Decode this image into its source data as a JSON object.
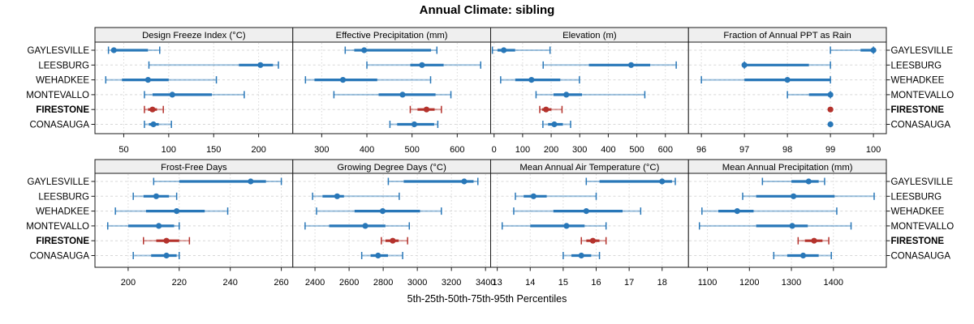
{
  "title": "Annual Climate: sibling",
  "xlabel": "5th-25th-50th-75th-95th Percentiles",
  "sites": [
    "GAYLESVILLE",
    "LEESBURG",
    "WEHADKEE",
    "MONTEVALLO",
    "FIRESTONE",
    "CONASAUGA"
  ],
  "highlight_site": "FIRESTONE",
  "colors": {
    "series": "#2877b8",
    "highlight": "#b4322c",
    "strip_bg": "#efefef",
    "panel_border": "#1a1a1a",
    "grid": "#d8d8d8",
    "text": "#000000"
  },
  "chart_data": {
    "type": "dot-whisker-percentiles",
    "layout": {
      "rows": 2,
      "cols": 4,
      "legend": "none",
      "grid": "dashed"
    },
    "percentile_labels": [
      "5th",
      "25th",
      "50th",
      "75th",
      "95th"
    ],
    "panels": [
      {
        "title": "Design Freeze Index (°C)",
        "ticks": [
          50,
          100,
          150,
          200
        ],
        "xlim": [
          18,
          238
        ],
        "series": [
          {
            "name": "GAYLESVILLE",
            "percentiles": [
              33,
              36,
              39,
              77,
              90
            ]
          },
          {
            "name": "LEESBURG",
            "percentiles": [
              78,
              178,
              202,
              216,
              222
            ]
          },
          {
            "name": "WEHADKEE",
            "percentiles": [
              30,
              48,
              77,
              100,
              153
            ]
          },
          {
            "name": "MONTEVALLO",
            "percentiles": [
              73,
              82,
              104,
              148,
              184
            ]
          },
          {
            "name": "FIRESTONE",
            "percentiles": [
              73,
              77,
              82,
              87,
              94
            ]
          },
          {
            "name": "CONASAUGA",
            "percentiles": [
              73,
              78,
              83,
              89,
              103
            ]
          }
        ]
      },
      {
        "title": "Effective Precipitation (mm)",
        "ticks": [
          300,
          400,
          500,
          600
        ],
        "xlim": [
          236,
          674
        ],
        "series": [
          {
            "name": "GAYLESVILLE",
            "percentiles": [
              352,
              372,
              394,
              542,
              555
            ]
          },
          {
            "name": "LEESBURG",
            "percentiles": [
              400,
              496,
              522,
              570,
              652
            ]
          },
          {
            "name": "WEHADKEE",
            "percentiles": [
              264,
              284,
              347,
              423,
              541
            ]
          },
          {
            "name": "MONTEVALLO",
            "percentiles": [
              327,
              426,
              479,
              552,
              586
            ]
          },
          {
            "name": "FIRESTONE",
            "percentiles": [
              496,
              512,
              532,
              550,
              565
            ]
          },
          {
            "name": "CONASAUGA",
            "percentiles": [
              451,
              467,
              505,
              549,
              557
            ]
          }
        ]
      },
      {
        "title": "Elevation (m)",
        "ticks": [
          0,
          100,
          200,
          300,
          400,
          500,
          600
        ],
        "xlim": [
          -12,
          681
        ],
        "series": [
          {
            "name": "GAYLESVILLE",
            "percentiles": [
              -6,
              12,
              34,
              74,
              196
            ]
          },
          {
            "name": "LEESBURG",
            "percentiles": [
              172,
              332,
              480,
              547,
              638
            ]
          },
          {
            "name": "WEHADKEE",
            "percentiles": [
              23,
              74,
              131,
              232,
              299
            ]
          },
          {
            "name": "MONTEVALLO",
            "percentiles": [
              147,
              208,
              253,
              308,
              528
            ]
          },
          {
            "name": "FIRESTONE",
            "percentiles": [
              160,
              168,
              182,
              201,
              238
            ]
          },
          {
            "name": "CONASAUGA",
            "percentiles": [
              171,
              189,
              211,
              241,
              268
            ]
          }
        ]
      },
      {
        "title": "Fraction of Annual PPT as Rain",
        "ticks": [
          96,
          97,
          98,
          99,
          100
        ],
        "xlim": [
          95.7,
          100.3
        ],
        "series": [
          {
            "name": "GAYLESVILLE",
            "percentiles": [
              99,
              99.7,
              100,
              100,
              100
            ]
          },
          {
            "name": "LEESBURG",
            "percentiles": [
              97,
              97,
              97,
              98.5,
              99
            ]
          },
          {
            "name": "WEHADKEE",
            "percentiles": [
              96,
              97,
              98,
              99,
              99
            ]
          },
          {
            "name": "MONTEVALLO",
            "percentiles": [
              98,
              98.5,
              99,
              99,
              99
            ]
          },
          {
            "name": "FIRESTONE",
            "percentiles": [
              99,
              99,
              99,
              99,
              99
            ]
          },
          {
            "name": "CONASAUGA",
            "percentiles": [
              99,
              99,
              99,
              99,
              99
            ]
          }
        ]
      },
      {
        "title": "Frost-Free Days",
        "ticks": [
          200,
          220,
          240,
          260
        ],
        "xlim": [
          187,
          264.5
        ],
        "series": [
          {
            "name": "GAYLESVILLE",
            "percentiles": [
              210,
              220,
              248,
              254,
              260
            ]
          },
          {
            "name": "LEESBURG",
            "percentiles": [
              202,
              206,
              211,
              216,
              219
            ]
          },
          {
            "name": "WEHADKEE",
            "percentiles": [
              195,
              207,
              219,
              230,
              239
            ]
          },
          {
            "name": "MONTEVALLO",
            "percentiles": [
              192,
              200,
              212,
              218,
              220
            ]
          },
          {
            "name": "FIRESTONE",
            "percentiles": [
              206,
              211,
              215,
              220,
              224
            ]
          },
          {
            "name": "CONASAUGA",
            "percentiles": [
              202,
              209,
              215,
              219,
              220
            ]
          }
        ]
      },
      {
        "title": "Growing Degree Days (°C)",
        "ticks": [
          2400,
          2600,
          2800,
          3000,
          3200,
          3400
        ],
        "xlim": [
          2270,
          3430
        ],
        "series": [
          {
            "name": "GAYLESVILLE",
            "percentiles": [
              2830,
              2920,
              3275,
              3330,
              3355
            ]
          },
          {
            "name": "LEESBURG",
            "percentiles": [
              2386,
              2444,
              2530,
              2570,
              2894
            ]
          },
          {
            "name": "WEHADKEE",
            "percentiles": [
              2409,
              2632,
              2797,
              3016,
              3141
            ]
          },
          {
            "name": "MONTEVALLO",
            "percentiles": [
              2342,
              2483,
              2695,
              2813,
              2953
            ]
          },
          {
            "name": "FIRESTONE",
            "percentiles": [
              2789,
              2813,
              2856,
              2891,
              2943
            ]
          },
          {
            "name": "CONASAUGA",
            "percentiles": [
              2674,
              2726,
              2770,
              2828,
              2914
            ]
          }
        ]
      },
      {
        "title": "Mean Annual Air Temperature (°C)",
        "ticks": [
          13,
          14,
          15,
          16,
          17,
          18
        ],
        "xlim": [
          12.8,
          18.8
        ],
        "series": [
          {
            "name": "GAYLESVILLE",
            "percentiles": [
              15.7,
              16.1,
              18.0,
              18.3,
              18.4
            ]
          },
          {
            "name": "LEESBURG",
            "percentiles": [
              13.55,
              13.8,
              14.1,
              14.5,
              16.0
            ]
          },
          {
            "name": "WEHADKEE",
            "percentiles": [
              13.5,
              14.7,
              15.7,
              16.8,
              17.35
            ]
          },
          {
            "name": "MONTEVALLO",
            "percentiles": [
              13.15,
              14.0,
              15.1,
              15.65,
              16.3
            ]
          },
          {
            "name": "FIRESTONE",
            "percentiles": [
              15.55,
              15.7,
              15.9,
              16.1,
              16.3
            ]
          },
          {
            "name": "CONASAUGA",
            "percentiles": [
              15.0,
              15.25,
              15.55,
              15.85,
              16.1
            ]
          }
        ]
      },
      {
        "title": "Mean Annual Precipitation (mm)",
        "ticks": [
          1100,
          1200,
          1300,
          1400
        ],
        "xlim": [
          1055,
          1526
        ],
        "series": [
          {
            "name": "GAYLESVILLE",
            "percentiles": [
              1231,
              1300,
              1341,
              1365,
              1379
            ]
          },
          {
            "name": "LEESBURG",
            "percentiles": [
              1184,
              1216,
              1305,
              1403,
              1497
            ]
          },
          {
            "name": "WEHADKEE",
            "percentiles": [
              1087,
              1126,
              1171,
              1210,
              1408
            ]
          },
          {
            "name": "MONTEVALLO",
            "percentiles": [
              1081,
              1216,
              1302,
              1339,
              1442
            ]
          },
          {
            "name": "FIRESTONE",
            "percentiles": [
              1316,
              1332,
              1354,
              1374,
              1389
            ]
          },
          {
            "name": "CONASAUGA",
            "percentiles": [
              1258,
              1290,
              1328,
              1365,
              1395
            ]
          }
        ]
      }
    ]
  }
}
